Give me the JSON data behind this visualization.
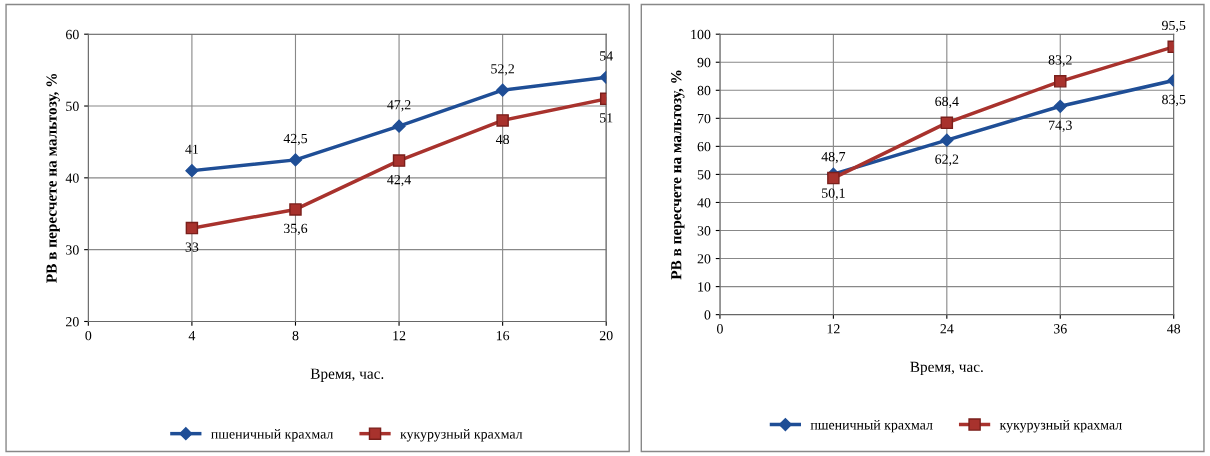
{
  "chart_data": [
    {
      "type": "line",
      "xlabel": "Время, час.",
      "ylabel": "РВ в пересчете на мальтозу, %",
      "x": [
        4,
        8,
        12,
        16,
        20
      ],
      "xlim": [
        0,
        20
      ],
      "xticks": [
        0,
        4,
        8,
        12,
        16,
        20
      ],
      "ylim": [
        20,
        60
      ],
      "yticks": [
        20,
        30,
        40,
        50,
        60
      ],
      "grid": true,
      "legend": "bottom",
      "series": [
        {
          "name": "пшеничный крахмал",
          "color": "#1f4e96",
          "marker": "diamond",
          "values": [
            41,
            42.5,
            47.2,
            52.2,
            54
          ],
          "value_labels": [
            "41",
            "42,5",
            "47,2",
            "52,2",
            "54"
          ]
        },
        {
          "name": "кукурузный крахмал",
          "color": "#a8322d",
          "marker": "square",
          "values": [
            33,
            35.6,
            42.4,
            48,
            51
          ],
          "value_labels": [
            "33",
            "35,6",
            "42,4",
            "48",
            "51"
          ]
        }
      ]
    },
    {
      "type": "line",
      "xlabel": "Время, час.",
      "ylabel": "РВ в пересчете на мальтозу, %",
      "x": [
        12,
        24,
        36,
        48
      ],
      "xlim": [
        0,
        48
      ],
      "xticks": [
        0,
        12,
        24,
        36,
        48
      ],
      "ylim": [
        0,
        100
      ],
      "yticks": [
        0,
        10,
        20,
        30,
        40,
        50,
        60,
        70,
        80,
        90,
        100
      ],
      "grid": true,
      "legend": "bottom",
      "series": [
        {
          "name": "пшеничный крахмал",
          "color": "#1f4e96",
          "marker": "diamond",
          "values": [
            50.1,
            62.2,
            74.3,
            83.5
          ],
          "value_labels": [
            "50,1",
            "62,2",
            "74,3",
            "83,5"
          ]
        },
        {
          "name": "кукурузный крахмал",
          "color": "#a8322d",
          "marker": "square",
          "values": [
            48.7,
            68.4,
            83.2,
            95.5
          ],
          "value_labels": [
            "48,7",
            "68,4",
            "83,2",
            "95,5"
          ]
        }
      ]
    }
  ]
}
